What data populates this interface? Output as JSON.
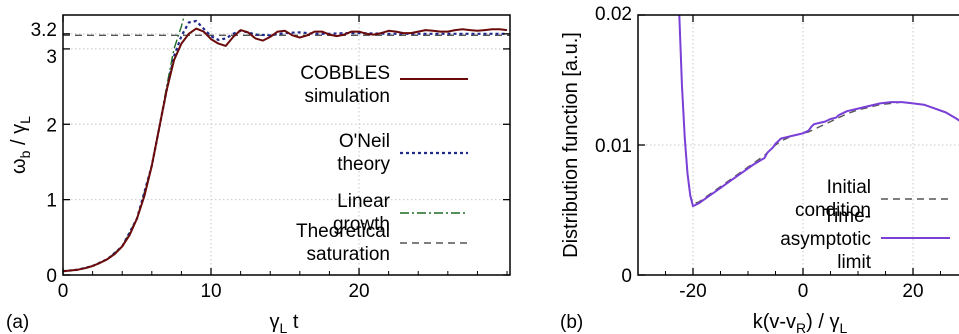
{
  "chart_data": [
    {
      "type": "line",
      "panel_label": "(a)",
      "xlabel": "γ",
      "xlabel_sub": "L",
      "xlabel_suffix": " t",
      "ylabel": "ω",
      "ylabel_sub": "b",
      "ylabel_suffix": " / γ",
      "ylabel_sub2": "L",
      "xlim": [
        0,
        30.2
      ],
      "ylim": [
        0,
        3.45
      ],
      "xticks": [
        "0",
        "10",
        "20"
      ],
      "xtick_values": [
        0,
        10,
        20
      ],
      "yticks": [
        "0",
        "1",
        "2",
        "3",
        "3.2"
      ],
      "ytick_values": [
        0,
        1,
        2,
        3,
        3.2
      ],
      "grid": true,
      "legend_position": "right",
      "series": [
        {
          "name_lines": [
            "COBBLES",
            "simulation"
          ],
          "color": "#6b0a0a",
          "style": "solid",
          "x": [
            0,
            0.5,
            1,
            1.5,
            2,
            2.5,
            3,
            3.5,
            4,
            4.5,
            5,
            5.5,
            6,
            6.5,
            7,
            7.5,
            8,
            8.5,
            9,
            9.5,
            10,
            10.5,
            11,
            11.5,
            12,
            12.5,
            13,
            13.5,
            14,
            14.5,
            15,
            15.5,
            16,
            16.5,
            17,
            17.5,
            18,
            18.5,
            19,
            19.5,
            20,
            20.5,
            21,
            21.5,
            22,
            22.5,
            23,
            23.5,
            24,
            24.5,
            25,
            25.5,
            26,
            26.5,
            27,
            27.5,
            28,
            28.5,
            29,
            29.5,
            30
          ],
          "y": [
            0.05,
            0.06,
            0.07,
            0.09,
            0.12,
            0.16,
            0.21,
            0.28,
            0.38,
            0.53,
            0.75,
            1.05,
            1.45,
            1.95,
            2.45,
            2.85,
            3.07,
            3.2,
            3.27,
            3.23,
            3.13,
            3.07,
            3.04,
            3.16,
            3.25,
            3.22,
            3.14,
            3.11,
            3.16,
            3.23,
            3.24,
            3.18,
            3.15,
            3.18,
            3.23,
            3.23,
            3.19,
            3.17,
            3.19,
            3.23,
            3.23,
            3.2,
            3.19,
            3.21,
            3.24,
            3.23,
            3.21,
            3.21,
            3.23,
            3.25,
            3.24,
            3.23,
            3.23,
            3.25,
            3.26,
            3.25,
            3.24,
            3.25,
            3.26,
            3.26,
            3.25
          ]
        },
        {
          "name_lines": [
            "O'Neil",
            "theory"
          ],
          "color": "#1f2a8c",
          "style": "dotted",
          "x": [
            0,
            1,
            2,
            3,
            4,
            5,
            6,
            6.5,
            7,
            7.5,
            8,
            8.5,
            9,
            9.5,
            10,
            10.5,
            11,
            11.5,
            12,
            12.5,
            13,
            14,
            15,
            16,
            17,
            18,
            19,
            20,
            22,
            24,
            26,
            28,
            30
          ],
          "y": [
            0.05,
            0.07,
            0.12,
            0.21,
            0.38,
            0.75,
            1.45,
            1.95,
            2.45,
            2.9,
            3.17,
            3.35,
            3.37,
            3.27,
            3.17,
            3.12,
            3.14,
            3.2,
            3.24,
            3.22,
            3.19,
            3.18,
            3.21,
            3.22,
            3.2,
            3.2,
            3.21,
            3.21,
            3.2,
            3.2,
            3.2,
            3.2,
            3.2
          ]
        },
        {
          "name_lines": [
            "Linear",
            "growth"
          ],
          "color": "#1d6b24",
          "style": "dashdot",
          "x": [
            0,
            1,
            2,
            3,
            4,
            5,
            6,
            6.5,
            7,
            7.5,
            8,
            8.2
          ],
          "y": [
            0.05,
            0.07,
            0.12,
            0.21,
            0.38,
            0.75,
            1.45,
            1.95,
            2.5,
            3.0,
            3.3,
            3.45
          ]
        },
        {
          "name_lines": [
            "Theoretical",
            "saturation"
          ],
          "color": "#555555",
          "style": "dashed",
          "x": [
            0,
            30.2
          ],
          "y": [
            3.18,
            3.18
          ]
        }
      ]
    },
    {
      "type": "line",
      "panel_label": "(b)",
      "xlabel": "k(v-v",
      "xlabel_sub": "R",
      "xlabel_suffix": ") / γ",
      "xlabel_sub2": "L",
      "ylabel": "Distribution function [a.u.]",
      "xlim": [
        -30,
        30
      ],
      "ylim": [
        0,
        0.02
      ],
      "xticks": [
        "-20",
        "0",
        "20"
      ],
      "xtick_values": [
        -20,
        0,
        20
      ],
      "yticks": [
        "0",
        "0.01",
        "0.02"
      ],
      "ytick_values": [
        0,
        0.01,
        0.02
      ],
      "grid": true,
      "legend_position": "right",
      "series": [
        {
          "name_lines": [
            "Initial",
            "condition"
          ],
          "color": "#555555",
          "style": "dashed",
          "x": [
            -22.5,
            -22,
            -21.5,
            -21,
            -20.5,
            -20,
            -19,
            -17,
            -15,
            -13,
            -11,
            -9,
            -7,
            -6,
            -5,
            -4,
            -3,
            -2,
            -1,
            0,
            1,
            2,
            3,
            4,
            5,
            6,
            7,
            8,
            10,
            12,
            14,
            16,
            18,
            20,
            22,
            24,
            26,
            28,
            30
          ],
          "y": [
            0.02,
            0.0145,
            0.0105,
            0.0078,
            0.0061,
            0.0055,
            0.0056,
            0.0062,
            0.0068,
            0.0074,
            0.008,
            0.0086,
            0.0092,
            0.0096,
            0.01,
            0.0103,
            0.0105,
            0.0107,
            0.0108,
            0.0109,
            0.011,
            0.0112,
            0.0114,
            0.0116,
            0.0118,
            0.012,
            0.0122,
            0.0124,
            0.0127,
            0.0129,
            0.0131,
            0.0132,
            0.0133,
            0.0132,
            0.0131,
            0.0128,
            0.0125,
            0.012,
            0.0114
          ]
        },
        {
          "name_lines": [
            "Time-",
            "asymptotic",
            "limit"
          ],
          "color": "#7a3fd6",
          "style": "solid",
          "x": [
            -22.5,
            -22,
            -21.5,
            -21,
            -20.5,
            -20,
            -19,
            -17,
            -15,
            -13,
            -11,
            -9,
            -7,
            -6.5,
            -6,
            -5.5,
            -5,
            -4.5,
            -4,
            -3,
            -2,
            -1,
            0,
            1,
            1.5,
            2,
            3,
            4,
            5,
            6,
            6.5,
            7,
            8,
            10,
            12,
            14,
            16,
            18,
            20,
            22,
            24,
            26,
            28,
            30
          ],
          "y": [
            0.02,
            0.0145,
            0.0105,
            0.0078,
            0.0061,
            0.0053,
            0.0055,
            0.0061,
            0.0067,
            0.0073,
            0.0079,
            0.0085,
            0.009,
            0.0094,
            0.0096,
            0.0098,
            0.0101,
            0.0103,
            0.0105,
            0.0106,
            0.0107,
            0.0108,
            0.0109,
            0.0111,
            0.0114,
            0.0116,
            0.0117,
            0.0118,
            0.012,
            0.0121,
            0.0123,
            0.0124,
            0.0126,
            0.0128,
            0.013,
            0.0132,
            0.0133,
            0.0133,
            0.0132,
            0.0131,
            0.0128,
            0.0125,
            0.012,
            0.0114
          ]
        }
      ]
    }
  ]
}
